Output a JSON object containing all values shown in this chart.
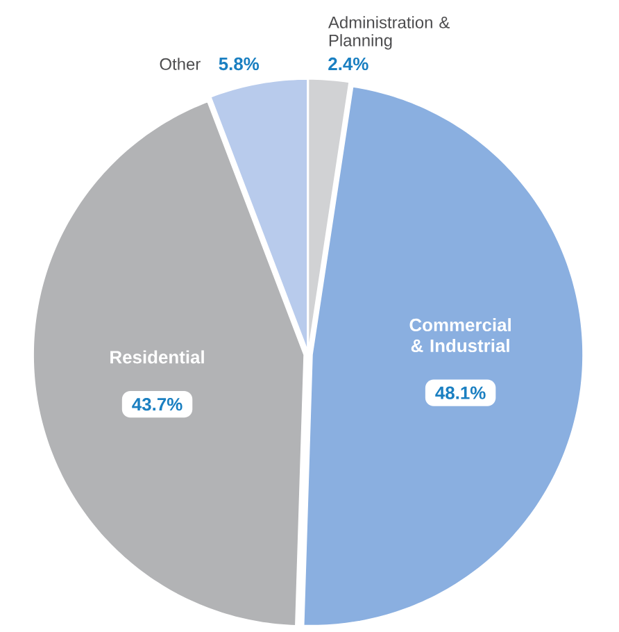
{
  "chart_data": {
    "type": "pie",
    "categories": [
      "Administration & Planning",
      "Commercial & Industrial",
      "Residential",
      "Other"
    ],
    "values": [
      2.4,
      48.1,
      43.7,
      5.8
    ],
    "value_labels": [
      "2.4%",
      "48.1%",
      "43.7%",
      "5.8%"
    ],
    "colors": [
      "#d1d2d4",
      "#8aafe0",
      "#b2b3b5",
      "#b8cbec"
    ]
  }
}
